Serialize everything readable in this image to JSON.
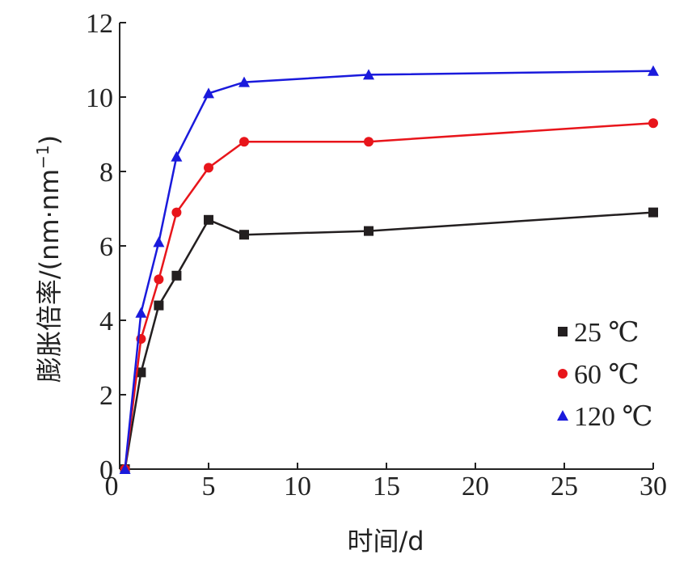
{
  "chart_data": {
    "type": "line",
    "xlabel": "时间/d",
    "ylabel": "膨胀倍率/(nm·nm",
    "ylabel_sup": "−1",
    "ylabel_close": ")",
    "xlim": [
      0,
      30
    ],
    "ylim": [
      0,
      12
    ],
    "xticks": [
      0,
      5,
      10,
      15,
      20,
      25,
      30
    ],
    "yticks": [
      0,
      2,
      4,
      6,
      8,
      10,
      12
    ],
    "x": [
      0.3,
      1.2,
      2.2,
      3.2,
      5,
      7,
      14,
      30
    ],
    "grid": false,
    "legend_position": "bottom-right",
    "series": [
      {
        "name": "25 ℃",
        "color": "#231f20",
        "marker": "square",
        "values": [
          0,
          2.6,
          4.4,
          5.2,
          6.7,
          6.3,
          6.4,
          6.9
        ]
      },
      {
        "name": "60 ℃",
        "color": "#e8151b",
        "marker": "circle",
        "values": [
          0,
          3.5,
          5.1,
          6.9,
          8.1,
          8.8,
          8.8,
          9.3
        ]
      },
      {
        "name": "120 ℃",
        "color": "#1a1adc",
        "marker": "triangle",
        "values": [
          0,
          4.2,
          6.1,
          8.4,
          10.1,
          10.4,
          10.6,
          10.7
        ]
      }
    ]
  }
}
